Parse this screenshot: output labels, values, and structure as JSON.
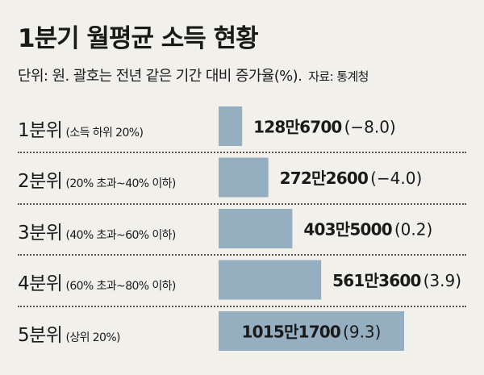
{
  "title": "1분기 월평균 소득 현황",
  "subtitle": "단위: 원. 괄호는 전년 같은 기간 대비 증가율(%).",
  "source": "자료: 통계청",
  "colors": {
    "bar": "#95afc0",
    "text": "#1a1a1a",
    "background": "#f1f0eb"
  },
  "chart_data": {
    "type": "bar",
    "orientation": "horizontal",
    "categories": [
      "1분위",
      "2분위",
      "3분위",
      "4분위",
      "5분위"
    ],
    "category_notes": [
      "(소득 하위 20%)",
      "(20% 초과~40% 이하)",
      "(40% 초과~60% 이하)",
      "(60% 초과~80% 이하)",
      "(상위 20%)"
    ],
    "values": [
      1286700,
      2722600,
      4035000,
      5613600,
      10151700
    ],
    "value_labels": [
      "128만6700",
      "272만2600",
      "403만5000",
      "561만3600",
      "1015만1700"
    ],
    "change_labels": [
      "(−8.0)",
      "(−4.0)",
      "(0.2)",
      "(3.9)",
      "(9.3)"
    ],
    "change_pct": [
      -8.0,
      -4.0,
      0.2,
      3.9,
      9.3
    ],
    "legend": "none",
    "grid": false
  }
}
